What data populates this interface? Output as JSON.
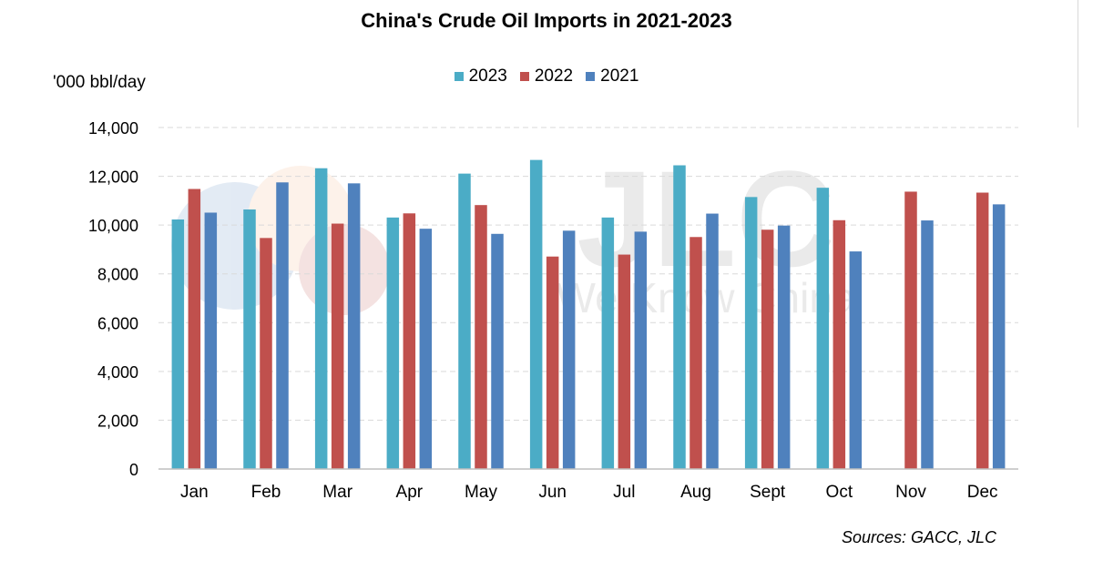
{
  "title": "China's Crude Oil Imports in 2021-2023",
  "unit_label": "'000 bbl/day",
  "source": "Sources: GACC, JLC",
  "watermark": {
    "brand": "JLC",
    "tagline": "We Know China"
  },
  "colors": {
    "s2023": "#4bacc6",
    "s2022": "#c0504d",
    "s2021": "#4f81bd",
    "grid": "#d9d9d9",
    "axis": "#bfbfbf"
  },
  "chart_data": {
    "type": "bar",
    "title": "China's Crude Oil Imports in 2021-2023",
    "xlabel": "",
    "ylabel": "'000 bbl/day",
    "ylim": [
      0,
      14000
    ],
    "yticks": [
      0,
      2000,
      4000,
      6000,
      8000,
      10000,
      12000,
      14000
    ],
    "ytick_labels": [
      "0",
      "2,000",
      "4,000",
      "6,000",
      "8,000",
      "10,000",
      "12,000",
      "14,000"
    ],
    "grid": true,
    "legend_position": "top-center",
    "categories": [
      "Jan",
      "Feb",
      "Mar",
      "Apr",
      "May",
      "Jun",
      "Jul",
      "Aug",
      "Sept",
      "Oct",
      "Nov",
      "Dec"
    ],
    "series": [
      {
        "name": "2023",
        "color": "#4bacc6",
        "values": [
          10230,
          10640,
          12330,
          10310,
          12110,
          12670,
          10310,
          12450,
          11150,
          11530,
          null,
          null
        ]
      },
      {
        "name": "2022",
        "color": "#c0504d",
        "values": [
          11480,
          9470,
          10060,
          10480,
          10820,
          8710,
          8790,
          9510,
          9810,
          10200,
          11370,
          11330
        ]
      },
      {
        "name": "2021",
        "color": "#4f81bd",
        "values": [
          10510,
          11750,
          11710,
          9850,
          9640,
          9770,
          9730,
          10470,
          9980,
          8920,
          10190,
          10850
        ]
      }
    ]
  }
}
